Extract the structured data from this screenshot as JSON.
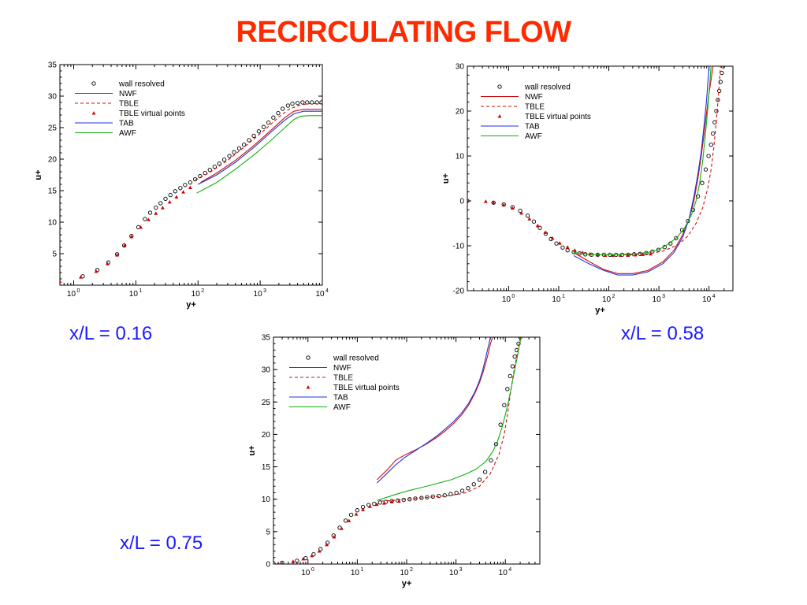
{
  "title": "RECIRCULATING FLOW",
  "colors": {
    "title": "#ff2a00",
    "caption": "#1a1aff",
    "wall_resolved": "#000000",
    "NWF": "#d01010",
    "TBLE": "#d01010",
    "TBLE_virtual_points": "#cc0000",
    "TAB": "#2233dd",
    "AWF": "#10b010"
  },
  "captions": [
    "x/L = 0.16",
    "x/L = 0.58",
    "x/L = 0.75"
  ],
  "chart_data": [
    {
      "type": "line",
      "caption": "x/L = 0.16",
      "xlabel": "y+",
      "ylabel": "u+",
      "x_scale": "log",
      "xlim": [
        0.6,
        10000
      ],
      "ylim": [
        0,
        35
      ],
      "x_ticks": [
        {
          "v": 1,
          "b": "10",
          "e": "0"
        },
        {
          "v": 10,
          "b": "10",
          "e": "1"
        },
        {
          "v": 100,
          "b": "10",
          "e": "2"
        },
        {
          "v": 1000,
          "b": "10",
          "e": "3"
        },
        {
          "v": 10000,
          "b": "10",
          "e": "4"
        }
      ],
      "y_ticks": [
        5,
        10,
        15,
        20,
        25,
        30,
        35
      ],
      "legend": [
        "wall resolved",
        "NWF",
        "TBLE",
        "TBLE virtual points",
        "TAB",
        "AWF"
      ],
      "legend_position": "top-left",
      "series": [
        {
          "name": "wall resolved",
          "style": "circles",
          "x": [
            1.4,
            2.4,
            3.6,
            5,
            6.5,
            8.5,
            11,
            14,
            17,
            21,
            25,
            30,
            36,
            43,
            52,
            62,
            75,
            90,
            108,
            130,
            155,
            185,
            220,
            265,
            320,
            380,
            460,
            550,
            660,
            790,
            950,
            1140,
            1360,
            1630,
            1950,
            2300,
            2800,
            3300,
            4000,
            4800,
            5700,
            6800,
            8200,
            9700
          ],
          "y": [
            1.4,
            2.4,
            3.6,
            4.9,
            6.3,
            7.8,
            9.2,
            10.5,
            11.5,
            12.3,
            13,
            13.7,
            14.3,
            14.9,
            15.4,
            15.9,
            16.3,
            16.8,
            17.3,
            17.8,
            18.3,
            18.8,
            19.3,
            19.9,
            20.5,
            21.1,
            21.7,
            22.3,
            23,
            23.7,
            24.4,
            25.1,
            25.8,
            26.6,
            27.3,
            28,
            28.5,
            28.8,
            28.9,
            29,
            29,
            29,
            29,
            29
          ]
        },
        {
          "name": "TBLE virtual points",
          "style": "triangles",
          "x": [
            0.6,
            1.3,
            2.3,
            3.5,
            5,
            6.6,
            8.5,
            12,
            16,
            21,
            27,
            35,
            45,
            58,
            75
          ],
          "y": [
            0.6,
            1.3,
            2.2,
            3.4,
            4.8,
            6.3,
            7.7,
            9.2,
            10.4,
            11.4,
            12.3,
            13.2,
            14,
            14.8,
            15.5
          ]
        },
        {
          "name": "NWF",
          "style": "solid",
          "x": [
            110,
            200,
            400,
            800,
            1500,
            2500,
            3500,
            5000,
            7000,
            10000
          ],
          "y": [
            16.3,
            17.8,
            19.8,
            22.2,
            24.6,
            26.6,
            27.6,
            27.9,
            27.9,
            27.9
          ]
        },
        {
          "name": "TBLE",
          "style": "dashed",
          "x": [
            90,
            150,
            300,
            600,
            1200,
            2000,
            3000,
            4500,
            6000,
            10000
          ],
          "y": [
            16.7,
            17.8,
            19.8,
            22.2,
            24.7,
            26.7,
            28,
            28.6,
            28.8,
            28.8
          ]
        },
        {
          "name": "TAB",
          "style": "solid",
          "x": [
            100,
            200,
            400,
            800,
            1500,
            2500,
            3500,
            5000,
            7000,
            10000
          ],
          "y": [
            16,
            17.5,
            19.5,
            21.9,
            24.3,
            26.2,
            27.2,
            27.6,
            27.6,
            27.6
          ]
        },
        {
          "name": "AWF",
          "style": "solid",
          "x": [
            95,
            200,
            400,
            800,
            1500,
            2500,
            3500,
            4500,
            6000,
            10000
          ],
          "y": [
            14.6,
            16.3,
            18.4,
            20.7,
            23,
            25,
            26.3,
            26.8,
            26.9,
            26.9
          ]
        }
      ]
    },
    {
      "type": "line",
      "caption": "x/L = 0.58",
      "xlabel": "y+",
      "ylabel": "u+",
      "x_scale": "log",
      "xlim": [
        0.15,
        30000
      ],
      "ylim": [
        -20,
        30
      ],
      "x_ticks": [
        {
          "v": 1,
          "b": "10",
          "e": "0"
        },
        {
          "v": 10,
          "b": "10",
          "e": "1"
        },
        {
          "v": 100,
          "b": "10",
          "e": "2"
        },
        {
          "v": 1000,
          "b": "10",
          "e": "3"
        },
        {
          "v": 10000,
          "b": "10",
          "e": "4"
        }
      ],
      "y_ticks": [
        -20,
        -10,
        0,
        10,
        20,
        30
      ],
      "legend": [
        "wall resolved",
        "NWF",
        "TBLE",
        "TBLE virtual points",
        "TAB",
        "AWF"
      ],
      "legend_position": "top-left",
      "series": [
        {
          "name": "wall resolved",
          "style": "circles",
          "x": [
            0.15,
            0.5,
            0.8,
            1.2,
            1.7,
            2.4,
            3.2,
            4.2,
            5.5,
            7,
            9,
            12,
            15,
            20,
            26,
            34,
            45,
            60,
            80,
            105,
            140,
            185,
            245,
            320,
            420,
            560,
            740,
            980,
            1300,
            1700,
            2200,
            2900,
            3800,
            4800,
            6000,
            7300,
            8600,
            9800,
            11000,
            12000,
            13000,
            14000,
            15000,
            16000,
            17000,
            18000,
            19000
          ],
          "y": [
            0,
            -0.4,
            -0.8,
            -1.4,
            -2.2,
            -3.3,
            -4.6,
            -6,
            -7.3,
            -8.5,
            -9.5,
            -10.4,
            -11,
            -11.4,
            -11.7,
            -11.9,
            -12,
            -12,
            -12,
            -12,
            -12,
            -12,
            -12,
            -11.9,
            -11.8,
            -11.6,
            -11.3,
            -10.9,
            -10.3,
            -9.5,
            -8.3,
            -6.5,
            -4.5,
            -2,
            1,
            4,
            7,
            10,
            12.5,
            15,
            17.5,
            20,
            22.5,
            24.5,
            26.5,
            28.5,
            30
          ]
        },
        {
          "name": "TBLE virtual points",
          "style": "triangles",
          "x": [
            0.15,
            0.35,
            0.5,
            0.8,
            1.2,
            1.8,
            2.6,
            3.8,
            5.4,
            7.5,
            10.5,
            15,
            21,
            30,
            42,
            60,
            85,
            120,
            170,
            240,
            340,
            480,
            680
          ],
          "y": [
            0,
            -0.1,
            -0.4,
            -0.9,
            -1.6,
            -2.7,
            -4,
            -5.5,
            -7,
            -8.3,
            -9.4,
            -10.3,
            -11,
            -11.5,
            -11.8,
            -12,
            -12.1,
            -12.1,
            -12.1,
            -12.1,
            -12,
            -11.9,
            -11.8
          ]
        },
        {
          "name": "NWF",
          "style": "solid",
          "x": [
            20,
            40,
            80,
            150,
            300,
            600,
            1200,
            2000,
            3000,
            4000,
            5000,
            6000,
            7000,
            8000,
            9000,
            10000,
            11000,
            12000
          ],
          "y": [
            -11.5,
            -13.5,
            -15.3,
            -16.2,
            -16.2,
            -15.5,
            -13.6,
            -11,
            -7.5,
            -4,
            0,
            5,
            10,
            15,
            20,
            24,
            27,
            30
          ]
        },
        {
          "name": "TBLE",
          "style": "dashed",
          "x": [
            20,
            40,
            80,
            150,
            300,
            600,
            1200,
            2400,
            3800,
            5500,
            7500,
            9500,
            11000,
            12500,
            14000,
            15500,
            17000
          ],
          "y": [
            -11.5,
            -11.9,
            -12,
            -12,
            -12,
            -11.8,
            -11.2,
            -9.8,
            -7.8,
            -5,
            -1.5,
            3,
            7,
            12,
            18,
            24,
            30
          ]
        },
        {
          "name": "TAB",
          "style": "solid",
          "x": [
            20,
            40,
            80,
            150,
            300,
            600,
            1200,
            2000,
            3000,
            4000,
            5000,
            6000,
            7000,
            8000,
            9000,
            10000
          ],
          "y": [
            -12.2,
            -14,
            -15.5,
            -16.5,
            -16.5,
            -15.8,
            -14,
            -11.5,
            -8,
            -4,
            1,
            6,
            11,
            17,
            23,
            30
          ]
        },
        {
          "name": "AWF",
          "style": "solid",
          "x": [
            20,
            40,
            80,
            150,
            300,
            600,
            1000,
            1500,
            2200,
            3200,
            4500,
            5500,
            6500,
            7500,
            8500,
            9500,
            11000
          ],
          "y": [
            -11.5,
            -11.9,
            -12,
            -12,
            -11.8,
            -11.5,
            -10.8,
            -9.7,
            -8.3,
            -6.2,
            -3,
            0,
            4,
            9,
            15,
            21,
            30
          ]
        }
      ]
    },
    {
      "type": "line",
      "caption": "x/L = 0.75",
      "xlabel": "y+",
      "ylabel": "u+",
      "x_scale": "log",
      "xlim": [
        0.2,
        50000
      ],
      "ylim": [
        0,
        35
      ],
      "x_ticks": [
        {
          "v": 1,
          "b": "10",
          "e": "0"
        },
        {
          "v": 10,
          "b": "10",
          "e": "1"
        },
        {
          "v": 100,
          "b": "10",
          "e": "2"
        },
        {
          "v": 1000,
          "b": "10",
          "e": "3"
        },
        {
          "v": 10000,
          "b": "10",
          "e": "4"
        }
      ],
      "y_ticks": [
        0,
        5,
        10,
        15,
        20,
        25,
        30,
        35
      ],
      "legend": [
        "wall resolved",
        "NWF",
        "TBLE",
        "TBLE virtual points",
        "TAB",
        "AWF"
      ],
      "legend_position": "top-left",
      "series": [
        {
          "name": "wall resolved",
          "style": "circles",
          "x": [
            0.2,
            0.3,
            0.6,
            0.9,
            1.3,
            1.8,
            2.5,
            3.3,
            4.4,
            5.8,
            7.5,
            10,
            13,
            17,
            22,
            29,
            38,
            50,
            66,
            87,
            115,
            150,
            200,
            260,
            340,
            450,
            590,
            780,
            1020,
            1340,
            1760,
            2300,
            3000,
            3900,
            5100,
            6500,
            8000,
            9500,
            11000,
            12500,
            14000,
            15500,
            17000,
            18500,
            20000
          ],
          "y": [
            0.1,
            0.2,
            0.5,
            0.9,
            1.5,
            2.3,
            3.3,
            4.4,
            5.6,
            6.7,
            7.6,
            8.3,
            8.8,
            9.1,
            9.3,
            9.5,
            9.6,
            9.7,
            9.8,
            9.9,
            10,
            10.1,
            10.2,
            10.3,
            10.4,
            10.5,
            10.6,
            10.8,
            11,
            11.3,
            11.7,
            12.3,
            13,
            14.2,
            16,
            18.5,
            21.5,
            24.5,
            27,
            29,
            30.5,
            32,
            33,
            34,
            35
          ]
        },
        {
          "name": "TBLE virtual points",
          "style": "triangles",
          "x": [
            0.2,
            0.25,
            0.5,
            0.8,
            1.2,
            1.7,
            2.4,
            3.4,
            4.8,
            6.8,
            9.5,
            13,
            18,
            25,
            35,
            50,
            70
          ],
          "y": [
            0,
            0.1,
            0.4,
            0.8,
            1.3,
            2,
            3,
            4.2,
            5.5,
            6.7,
            7.7,
            8.4,
            8.9,
            9.2,
            9.4,
            9.6,
            9.7
          ]
        },
        {
          "name": "NWF",
          "style": "solid",
          "x": [
            25,
            40,
            60,
            90,
            150,
            250,
            400,
            600,
            900,
            1300,
            1800,
            2400,
            3000,
            3500,
            4000,
            4500,
            5000,
            5500
          ],
          "y": [
            13,
            14.5,
            16,
            16.8,
            17.6,
            18.5,
            19.5,
            20.5,
            21.7,
            23,
            24.5,
            26.3,
            28,
            29.5,
            31,
            32.5,
            34,
            35
          ]
        },
        {
          "name": "TBLE",
          "style": "dashed",
          "x": [
            30,
            50,
            100,
            200,
            400,
            800,
            1600,
            3000,
            5000,
            7500,
            9500,
            11000,
            12500,
            14000,
            15500,
            17000,
            18500,
            20000
          ],
          "y": [
            9.7,
            9.8,
            10,
            10.2,
            10.4,
            10.6,
            11,
            12,
            14,
            17,
            20,
            23,
            26,
            28.5,
            30.5,
            32,
            33.5,
            35
          ]
        },
        {
          "name": "TAB",
          "style": "solid",
          "x": [
            25,
            40,
            60,
            90,
            150,
            250,
            400,
            600,
            900,
            1300,
            1800,
            2400,
            3000,
            3500,
            4000,
            4500,
            5000
          ],
          "y": [
            12.5,
            14,
            15.3,
            16.4,
            17.5,
            18.6,
            19.7,
            20.8,
            22,
            23.3,
            24.8,
            26.5,
            28.3,
            30,
            31.8,
            33.5,
            35
          ]
        },
        {
          "name": "AWF",
          "style": "solid",
          "x": [
            25,
            40,
            70,
            120,
            200,
            400,
            800,
            1500,
            2500,
            4000,
            5500,
            7000,
            8500,
            10000,
            11500,
            13000,
            14500,
            16000,
            17500,
            19000,
            21000
          ],
          "y": [
            9.8,
            10.3,
            10.9,
            11.4,
            11.8,
            12.4,
            13,
            13.8,
            14.6,
            15.8,
            17.3,
            19,
            21,
            23,
            25,
            27,
            28.8,
            30.5,
            32,
            33.5,
            35
          ]
        }
      ]
    }
  ]
}
